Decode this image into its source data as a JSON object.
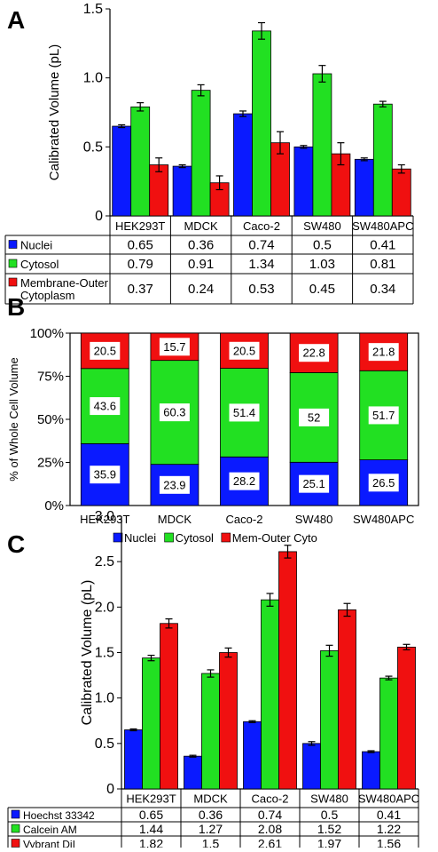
{
  "colors": {
    "nuclei": "#0a1aff",
    "cytosol": "#22e022",
    "membrane": "#f01010"
  },
  "chart_data": [
    {
      "panel": "A",
      "type": "bar",
      "categories": [
        "HEK293T",
        "MDCK",
        "Caco-2",
        "SW480",
        "SW480APC"
      ],
      "ylabel": "Calibrated Volume (pL)",
      "ylim": [
        0,
        1.5
      ],
      "yticks": [
        "0",
        "0.5",
        "1.0",
        "1.5"
      ],
      "series": [
        {
          "name": "Nuclei",
          "values": [
            0.65,
            0.36,
            0.74,
            0.5,
            0.41
          ],
          "errors": [
            0.01,
            0.01,
            0.02,
            0.01,
            0.01
          ],
          "labels": [
            "0.65",
            "0.36",
            "0.74",
            "0.5",
            "0.41"
          ]
        },
        {
          "name": "Cytosol",
          "values": [
            0.79,
            0.91,
            1.34,
            1.03,
            0.81
          ],
          "errors": [
            0.03,
            0.04,
            0.06,
            0.06,
            0.02
          ],
          "labels": [
            "0.79",
            "0.91",
            "1.34",
            "1.03",
            "0.81"
          ]
        },
        {
          "name": "Membrane-Outer Cytoplasm",
          "values": [
            0.37,
            0.24,
            0.53,
            0.45,
            0.34
          ],
          "errors": [
            0.05,
            0.05,
            0.08,
            0.08,
            0.03
          ],
          "labels": [
            "0.37",
            "0.24",
            "0.53",
            "0.45",
            "0.34"
          ]
        }
      ],
      "table_rows": [
        {
          "label": [
            "Nuclei"
          ]
        },
        {
          "label": [
            "Cytosol"
          ]
        },
        {
          "label": [
            "Membrane-Outer",
            "Cytoplasm"
          ]
        }
      ]
    },
    {
      "panel": "B",
      "type": "bar",
      "stacked": true,
      "categories": [
        "HEK293T",
        "MDCK",
        "Caco-2",
        "SW480",
        "SW480APC"
      ],
      "ylabel": "% of Whole Cell Volume",
      "ylim": [
        0,
        100
      ],
      "yticks": [
        "0%",
        "25%",
        "50%",
        "75%",
        "100%"
      ],
      "series": [
        {
          "name": "Nuclei",
          "values": [
            35.9,
            23.9,
            28.2,
            25.1,
            26.5
          ],
          "labels": [
            "35.9",
            "23.9",
            "28.2",
            "25.1",
            "26.5"
          ]
        },
        {
          "name": "Cytosol",
          "values": [
            43.6,
            60.3,
            51.4,
            52,
            51.7
          ],
          "labels": [
            "43.6",
            "60.3",
            "51.4",
            "52",
            "51.7"
          ]
        },
        {
          "name": "Mem-Outer Cyto",
          "values": [
            20.5,
            15.7,
            20.5,
            22.8,
            21.8
          ],
          "labels": [
            "20.5",
            "15.7",
            "20.5",
            "22.8",
            "21.8"
          ]
        }
      ],
      "legend": [
        "Nuclei",
        "Cytosol",
        "Mem-Outer Cyto"
      ]
    },
    {
      "panel": "C",
      "type": "bar",
      "categories": [
        "HEK293T",
        "MDCK",
        "Caco-2",
        "SW480",
        "SW480APC"
      ],
      "ylabel": "Calibrated Volume (pL)",
      "ylim": [
        0,
        3.0
      ],
      "yticks": [
        "0",
        "0.5",
        "1.0",
        "1.5",
        "2.0",
        "2.5",
        "3.0"
      ],
      "series": [
        {
          "name": "Hoechst 33342",
          "values": [
            0.65,
            0.36,
            0.74,
            0.5,
            0.41
          ],
          "errors": [
            0.01,
            0.01,
            0.01,
            0.02,
            0.01
          ],
          "labels": [
            "0.65",
            "0.36",
            "0.74",
            "0.5",
            "0.41"
          ]
        },
        {
          "name": "Calcein AM",
          "values": [
            1.44,
            1.27,
            2.08,
            1.52,
            1.22
          ],
          "errors": [
            0.03,
            0.04,
            0.07,
            0.06,
            0.02
          ],
          "labels": [
            "1.44",
            "1.27",
            "2.08",
            "1.52",
            "1.22"
          ]
        },
        {
          "name": "Vybrant DiI",
          "values": [
            1.82,
            1.5,
            2.61,
            1.97,
            1.56
          ],
          "errors": [
            0.05,
            0.05,
            0.07,
            0.07,
            0.03
          ],
          "labels": [
            "1.82",
            "1.5",
            "2.61",
            "1.97",
            "1.56"
          ]
        }
      ],
      "table_rows": [
        {
          "label": [
            "Hoechst 33342"
          ]
        },
        {
          "label": [
            "Calcein AM"
          ]
        },
        {
          "label": [
            "Vybrant DiI"
          ]
        }
      ]
    }
  ]
}
